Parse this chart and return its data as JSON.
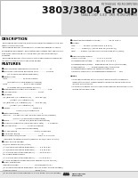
{
  "page_bg": "#e8e8e8",
  "header_bg": "#e0e0e0",
  "body_bg": "#ffffff",
  "title_top": "MITSUBISHI MICROCOMPUTERS",
  "title_main": "3803/3804 Group",
  "subtitle": "SINGLE-CHIP 8-BIT CMOS MICROCOMPUTER",
  "text_color": "#111111",
  "gray_text": "#555555",
  "description_title": "DESCRIPTION",
  "description_lines": [
    "The M38030 provides the 8-bit microcomputer based on the 740",
    "family core technology.",
    "The M38030 group is designed for household appliance, office",
    "automation equipment, and controlling systems that require pre-",
    "cise signal processing, including the A/D converter and D/A",
    "converter.",
    "The M38030 group is the version of the 3800 group in which an",
    "I2C-BUS control function has been added."
  ],
  "features_title": "FEATURES",
  "features_lines": [
    "■Basic machine language instructions .................. 71",
    "■Minimum instruction execution time ............. 0.33 μs",
    "          (at 12 MHz oscillation frequency)",
    "■Memory size",
    "  ROM .......................... 16 to 60 Kbytes",
    "          (64 Kbytes on-chip memory version)",
    "  RAM ............................ 512 to 1024 bytes",
    "          (2 Kbytes on-chip memory version)",
    "■Programmable output pulse width .................... 128",
    "■A/D converter ..................................... 10-bit",
    "■I/O ports",
    "  I/O (bidirect. I/O, software I/O) ...... P00-P07(8)",
    "               (output-I/O, software I/O)",
    "  I/O (bidirect. I/O, software I/O) ...... P10-P17(8)",
    "               (output-I/O, software I/O)",
    "■Timers ....................................... Timer 0-4",
    "                          UART (SIO) incorporated",
    "■Watchdog timer ....................................... 1",
    "  Interval .... 16,384; 32,768; 65,536 clock cycles(normal)",
    "                    4 ms x 1 (CRD input incorporated)",
    "■PROM ................. 8,192 x 8 (with data protection)",
    "■PC-BUS incorporated (2400 bps max. rate) ...... 1 channel",
    "■A/D converter .................. 10-bit 8-channel",
    "                         (Free running available)",
    "■DA conversion ............................. 8 bits/4 channels",
    "■LCD driver group ...................................... 8",
    "■Clock generator/divider ..................... Built-in 4 circuits",
    "   (connects to external crystal/ceramic or CR/C-only circuits)",
    "■Power source voltage",
    "  5V/12V system group (initial)",
    "  (At 3/6 MHz oscillation frequency) ....... 4.5 to 5.5V",
    "  (At 6/8 MHz oscillation frequency) ....... 4.5 to 5.5V",
    "  (At 12 MHz oscillation frequency) ....... 4.5 to 5.5V *",
    "  5V single supply group",
    "  (At 12 MHz oscillation frequency) ....... 3.7 to 5.5V *",
    "  (At this voltage the flash memory version is 5.0V to 5.5V)",
    "■Power dissipation",
    "  Operating mode ............................ 80 mW/5mA(typ.)",
    "  (at 12 MHz oscillation frequency, at 5.0V power source voltage)",
    "  Standby mode ............................... 3mW (typ.)",
    "  (at 32 kHz oscillation frequency, at 5.0 power source voltage)"
  ],
  "right_lines": [
    "■Operating temperature range ............. -20 to +85°C",
    "■Package",
    "  QFP ............. 64P6Q-A(14x14 mm, 0.8 QFP)",
    "  FP ............. 64P6T(A) (14x14 mm 15 (0.65QFP))",
    "  MFP ........ 64P2Q-A(22x22 mm 0.8mm lead pitch (QFP))",
    "",
    "■Flash memory model",
    "  Supply voltage ................... 2.7V x 1 x 5.5V",
    "  Programming voltage ...... pins 16 x 1 to 25 x 1",
    "  Programming method ... Programming time x (trimmings)",
    "  Erase method ........... Erase timing (ms) trimmings",
    "  Programmable control by software contained",
    "  Selection scheme for programming equipment .... 100",
    "",
    "NOTES",
    "  1 The specifications of this product are subject to change for",
    "    product to product improvements including use of Mitsubishi",
    "    Quality Commitment.",
    "  2 The flash memory version cannot be used for applications com-",
    "    pleted to the MCS used."
  ],
  "footer_line_color": "#aaaaaa",
  "header_divider_color": "#999999"
}
